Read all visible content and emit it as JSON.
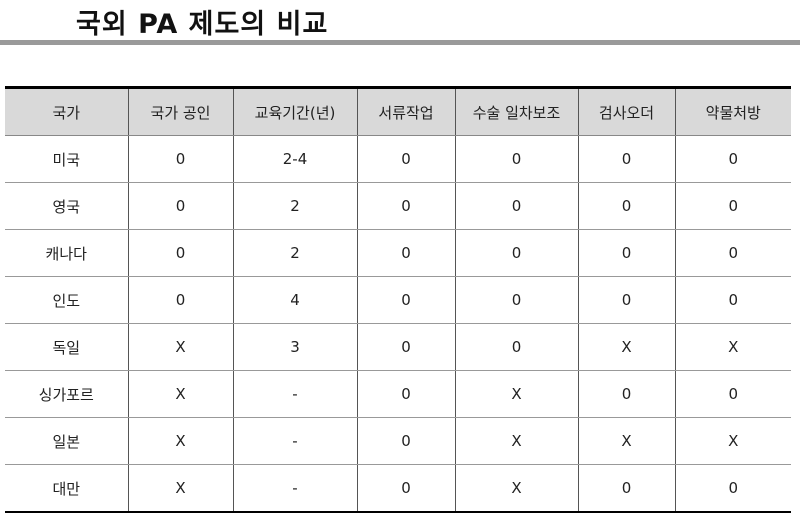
{
  "title": "국외 PA 제도의 비교",
  "table": {
    "headers": [
      "국가",
      "국가 공인",
      "교육기간(년)",
      "서류작업",
      "수술 일차보조",
      "검사오더",
      "약물처방"
    ],
    "rows": [
      [
        "미국",
        "0",
        "2-4",
        "0",
        "0",
        "0",
        "0"
      ],
      [
        "영국",
        "0",
        "2",
        "0",
        "0",
        "0",
        "0"
      ],
      [
        "캐나다",
        "0",
        "2",
        "0",
        "0",
        "0",
        "0"
      ],
      [
        "인도",
        "0",
        "4",
        "0",
        "0",
        "0",
        "0"
      ],
      [
        "독일",
        "X",
        "3",
        "0",
        "0",
        "X",
        "X"
      ],
      [
        "싱가포르",
        "X",
        "-",
        "0",
        "X",
        "0",
        "0"
      ],
      [
        "일본",
        "X",
        "-",
        "0",
        "X",
        "X",
        "X"
      ],
      [
        "대만",
        "X",
        "-",
        "0",
        "X",
        "0",
        "0"
      ]
    ]
  }
}
